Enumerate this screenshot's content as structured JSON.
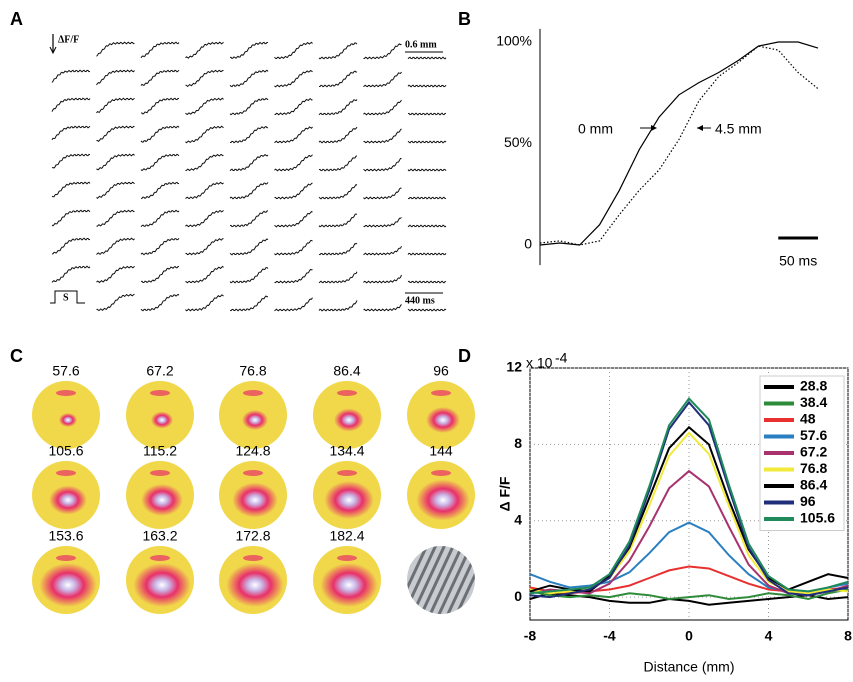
{
  "panel_labels": [
    "A",
    "B",
    "C",
    "D"
  ],
  "panel_a": {
    "delta_label": "ΔF/F",
    "scale_distance": "0.6 mm",
    "stimulus": "S",
    "scale_time": "440 ms"
  },
  "panel_c": {
    "frames": [
      57.6,
      67.2,
      76.8,
      86.4,
      96,
      105.6,
      115.2,
      124.8,
      134.4,
      144,
      153.6,
      163.2,
      172.8,
      182.4
    ]
  },
  "chart_data": [
    {
      "type": "line",
      "x": [
        0,
        25,
        50,
        75,
        100,
        125,
        150,
        175,
        200,
        225,
        250,
        275,
        300,
        325,
        350
      ],
      "xlim": [
        0,
        350
      ],
      "ylim": [
        -5,
        103
      ],
      "yticks": [
        0,
        {
          "value": 50,
          "label": "50%"
        },
        {
          "value": 100,
          "label": "100%"
        }
      ],
      "series": [
        {
          "name": "0 mm",
          "color": "#000000",
          "style": "solid",
          "values": [
            0,
            1,
            0,
            10,
            27,
            47,
            63,
            74,
            80,
            85,
            91,
            98,
            100,
            100,
            97
          ]
        },
        {
          "name": "4.5 mm",
          "color": "#000000",
          "style": "dotted",
          "values": [
            1,
            2,
            0,
            2,
            15,
            27,
            37,
            52,
            71,
            83,
            90,
            98,
            96,
            85,
            77
          ]
        }
      ],
      "scale_bar": {
        "value": 50,
        "label": "50 ms"
      }
    },
    {
      "type": "line",
      "x": [
        -8,
        -7,
        -6,
        -5,
        -4,
        -3,
        -2,
        -1,
        0,
        1,
        2,
        3,
        4,
        5,
        6,
        7,
        8
      ],
      "xlim": [
        -8,
        8
      ],
      "xticks": [
        -8,
        -4,
        0,
        4,
        8
      ],
      "ylim": [
        -1.2,
        12
      ],
      "yticks": [
        0,
        4,
        8,
        12
      ],
      "y_multiplier": "x 10",
      "y_multiplier_exponent": "-4",
      "ylabel": "Δ F/F",
      "xlabel": "Distance (mm)",
      "grid": true,
      "legend": "upper right",
      "series": [
        {
          "name": "28.8",
          "color": "#000000",
          "values": [
            -0.1,
            0.2,
            0.1,
            0.0,
            -0.2,
            -0.3,
            -0.3,
            -0.1,
            -0.2,
            -0.4,
            -0.3,
            -0.2,
            -0.1,
            0.0,
            0.1,
            -0.1,
            0.0
          ]
        },
        {
          "name": "38.4",
          "color": "#2e8b3a",
          "values": [
            0.3,
            0.1,
            0.0,
            0.1,
            0.0,
            0.2,
            0.1,
            -0.1,
            0.0,
            0.1,
            -0.1,
            0.0,
            0.2,
            0.1,
            -0.1,
            0.2,
            0.4
          ]
        },
        {
          "name": "48",
          "color": "#e8312f",
          "values": [
            0.5,
            0.3,
            0.2,
            0.3,
            0.4,
            0.6,
            1.0,
            1.4,
            1.6,
            1.5,
            1.1,
            0.7,
            0.4,
            0.3,
            0.2,
            0.4,
            0.5
          ]
        },
        {
          "name": "57.6",
          "color": "#2a7fc0",
          "values": [
            1.2,
            0.8,
            0.5,
            0.6,
            0.8,
            1.3,
            2.3,
            3.4,
            3.9,
            3.4,
            2.2,
            1.2,
            0.5,
            0.3,
            0.2,
            0.5,
            0.7
          ]
        },
        {
          "name": "67.2",
          "color": "#a8326e",
          "values": [
            0.2,
            0.4,
            0.3,
            0.2,
            0.7,
            1.9,
            3.7,
            5.7,
            6.6,
            5.8,
            3.7,
            1.7,
            0.6,
            0.2,
            0.1,
            0.3,
            0.6
          ]
        },
        {
          "name": "76.8",
          "color": "#f2ea3a",
          "values": [
            0.4,
            0.2,
            0.3,
            0.4,
            1.0,
            2.4,
            4.8,
            7.4,
            8.6,
            7.5,
            4.8,
            2.2,
            0.8,
            0.3,
            0.2,
            0.4,
            0.3
          ]
        },
        {
          "name": "86.4",
          "color": "#000000",
          "values": [
            0.3,
            0.6,
            0.4,
            0.3,
            1.1,
            2.6,
            5.2,
            7.8,
            8.9,
            8.0,
            5.1,
            2.5,
            1.0,
            0.4,
            0.8,
            1.2,
            1.0
          ]
        },
        {
          "name": "96",
          "color": "#1f2f7a",
          "values": [
            0.1,
            0.0,
            0.2,
            0.4,
            1.0,
            2.7,
            5.6,
            8.8,
            10.2,
            9.0,
            5.7,
            2.6,
            0.9,
            0.2,
            0.1,
            0.3,
            0.5
          ]
        },
        {
          "name": "105.6",
          "color": "#1f8a5a",
          "values": [
            0.2,
            0.3,
            0.4,
            0.5,
            1.2,
            2.9,
            5.8,
            9.0,
            10.4,
            9.3,
            5.9,
            2.8,
            1.1,
            0.4,
            0.3,
            0.5,
            0.8
          ]
        }
      ]
    }
  ]
}
